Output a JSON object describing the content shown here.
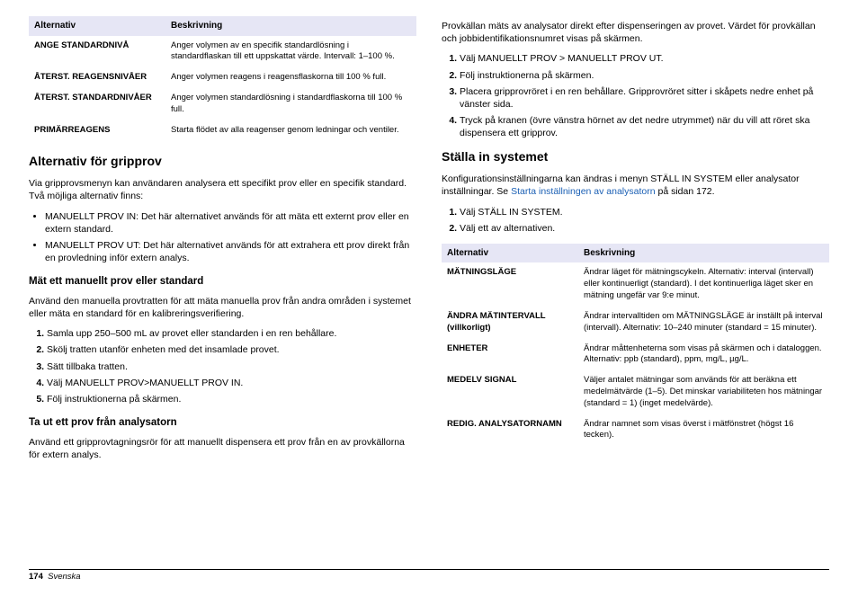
{
  "left": {
    "table1": {
      "headers": [
        "Alternativ",
        "Beskrivning"
      ],
      "rows": [
        {
          "label": "ANGE STANDARDNIVÅ",
          "desc": "Anger volymen av en specifik standardlösning i standardflaskan till ett uppskattat värde. Intervall: 1–100 %."
        },
        {
          "label": "ÅTERST. REAGENSNIVÅER",
          "desc": "Anger volymen reagens i reagensflaskorna till 100 % full."
        },
        {
          "label": "ÅTERST. STANDARDNIVÅER",
          "desc": "Anger volymen standardlösning i standardflaskorna till 100 % full."
        },
        {
          "label": "PRIMÄRREAGENS",
          "desc": "Starta flödet av alla reagenser genom ledningar och ventiler."
        }
      ]
    },
    "h2a": "Alternativ för gripprov",
    "p1": "Via gripprovsmenyn kan användaren analysera ett specifikt prov eller en specifik standard. Två möjliga alternativ finns:",
    "bullets1": [
      "MANUELLT PROV IN: Det här alternativet används för att mäta ett externt prov eller en extern standard.",
      "MANUELLT PROV UT: Det här alternativet används för att extrahera ett prov direkt från en provledning inför extern analys."
    ],
    "h3a": "Mät ett manuellt prov eller standard",
    "p2": "Använd den manuella provtratten för att mäta manuella prov från andra områden i systemet eller mäta en standard för en kalibreringsverifiering.",
    "steps1": [
      "Samla upp 250–500 mL av provet eller standarden i en ren behållare.",
      "Skölj tratten utanför enheten med det insamlade provet.",
      "Sätt tillbaka tratten.",
      "Välj MANUELLT PROV>MANUELLT PROV IN.",
      "Följ instruktionerna på skärmen."
    ],
    "h3b": "Ta ut ett prov från analysatorn",
    "p3": "Använd ett gripprovtagningsrör för att manuellt dispensera ett prov från en av provkällorna för extern analys."
  },
  "right": {
    "p0": "Provkällan mäts av analysator direkt efter dispenseringen av provet. Värdet för provkällan och jobbidentifikationsnumret visas på skärmen.",
    "steps2": [
      "Välj MANUELLT PROV > MANUELLT PROV UT.",
      "Följ instruktionerna på skärmen.",
      "Placera gripprovröret i en ren behållare. Gripprovröret sitter i skåpets nedre enhet på vänster sida.",
      "Tryck på kranen (övre vänstra hörnet av det nedre utrymmet) när du vill att röret ska dispensera ett gripprov."
    ],
    "h2b": "Ställa in systemet",
    "p4a": "Konfigurationsinställningarna kan ändras i menyn STÄLL IN SYSTEM eller analysator inställningar. Se ",
    "p4link": "Starta inställningen av analysatorn",
    "p4b": " på sidan 172.",
    "steps3": [
      "Välj STÄLL IN SYSTEM.",
      "Välj ett av alternativen."
    ],
    "table2": {
      "headers": [
        "Alternativ",
        "Beskrivning"
      ],
      "rows": [
        {
          "label": "MÄTNINGSLÄGE",
          "desc": "Ändrar läget för mätningscykeln. Alternativ: interval (intervall) eller kontinuerligt (standard). I det kontinuerliga läget sker en mätning ungefär var 9:e minut."
        },
        {
          "label": "ÄNDRA MÄTINTERVALL (villkorligt)",
          "desc": "Ändrar intervalltiden om MÄTNINGSLÄGE är inställt på interval (intervall). Alternativ: 10–240 minuter (standard = 15 minuter)."
        },
        {
          "label": "ENHETER",
          "desc": "Ändrar måttenheterna som visas på skärmen och i dataloggen. Alternativ: ppb (standard), ppm, mg/L, µg/L."
        },
        {
          "label": "MEDELV SIGNAL",
          "desc": "Väljer antalet mätningar som används för att beräkna ett medelmätvärde (1–5). Det minskar variabiliteten hos mätningar (standard = 1) (inget medelvärde)."
        },
        {
          "label": "REDIG. ANALYSATORNAMN",
          "desc": "Ändrar namnet som visas överst i mätfönstret (högst 16 tecken)."
        }
      ]
    }
  },
  "footer": {
    "page": "174",
    "lang": "Svenska"
  }
}
